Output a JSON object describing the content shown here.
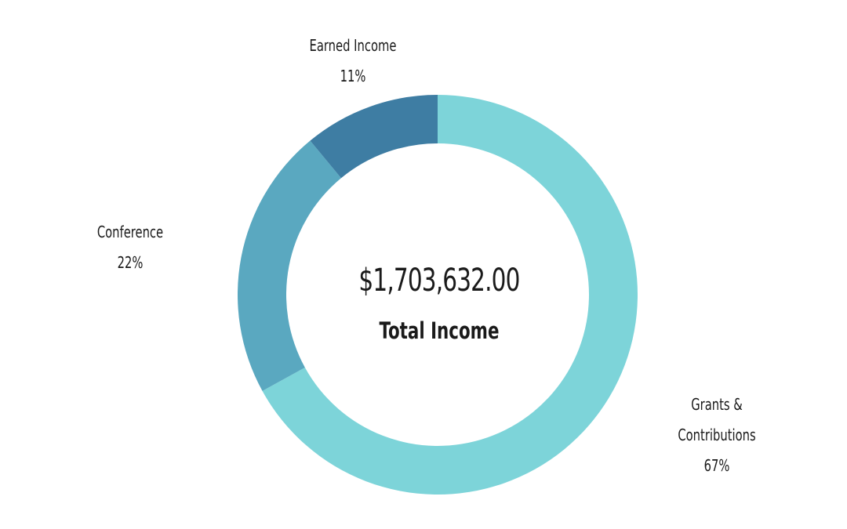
{
  "chart_data": {
    "type": "pie",
    "center": {
      "amount": "$1,703,632.00",
      "label": "Total Income"
    },
    "slices": [
      {
        "name_lines": [
          "Grants &",
          "Contributions"
        ],
        "percent_label": "67%",
        "value": 67,
        "color": "#7dd4d9"
      },
      {
        "name_lines": [
          "Conference"
        ],
        "percent_label": "22%",
        "value": 22,
        "color": "#5aa8c0"
      },
      {
        "name_lines": [
          "Earned Income"
        ],
        "percent_label": "11%",
        "value": 11,
        "color": "#3e7da3"
      }
    ]
  }
}
